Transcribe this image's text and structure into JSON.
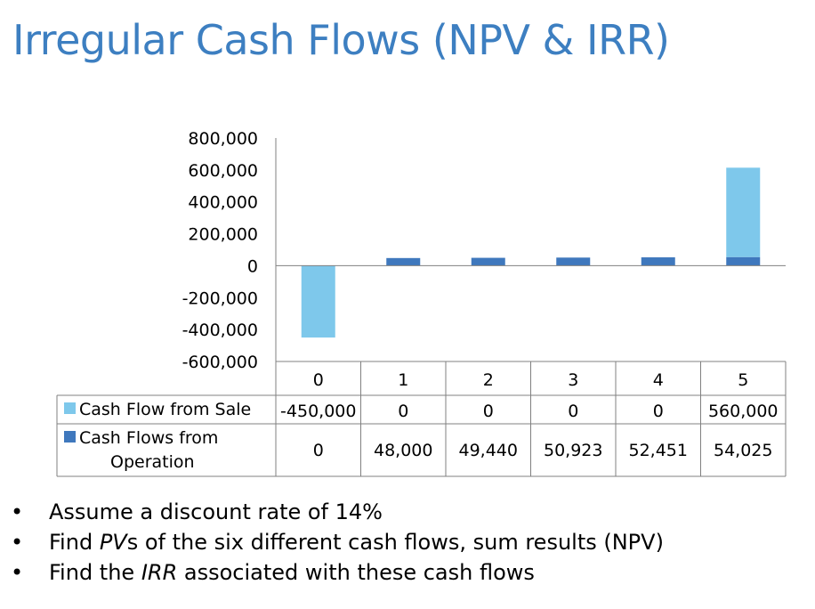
{
  "title": "Irregular Cash Flows (NPV & IRR)",
  "colors": {
    "title": "#3d7fc1",
    "sale": "#7ec8eb",
    "operation": "#3f78bd",
    "axis": "#808080"
  },
  "chart_data": {
    "type": "bar",
    "stacked": true,
    "categories": [
      "0",
      "1",
      "2",
      "3",
      "4",
      "5"
    ],
    "series": [
      {
        "name": "Cash Flow from Sale",
        "values": [
          -450000,
          0,
          0,
          0,
          0,
          560000
        ],
        "labels": [
          "-450,000",
          "0",
          "0",
          "0",
          "0",
          "560,000"
        ],
        "color": "#7ec8eb"
      },
      {
        "name": "Cash Flows from Operation",
        "values": [
          0,
          48000,
          49440,
          50923,
          52451,
          54025
        ],
        "labels": [
          "0",
          "48,000",
          "49,440",
          "50,923",
          "52,451",
          "54,025"
        ],
        "color": "#3f78bd"
      }
    ],
    "ylim": [
      -600000,
      800000
    ],
    "yticks": [
      800000,
      600000,
      400000,
      200000,
      0,
      -200000,
      -400000,
      -600000
    ],
    "ytick_labels": [
      "800,000",
      "600,000",
      "400,000",
      "200,000",
      "0",
      "-200,000",
      "-400,000",
      "-600,000"
    ],
    "data_table": true,
    "grid": false
  },
  "bullets": [
    {
      "parts": [
        {
          "text": "Assume a discount rate of 14%",
          "italic": false
        }
      ]
    },
    {
      "parts": [
        {
          "text": "Find ",
          "italic": false
        },
        {
          "text": "PV",
          "italic": true
        },
        {
          "text": "s of the six different cash flows, sum results (NPV)",
          "italic": false
        }
      ]
    },
    {
      "parts": [
        {
          "text": "Find the ",
          "italic": false
        },
        {
          "text": "IRR",
          "italic": true
        },
        {
          "text": " associated with these cash flows",
          "italic": false
        }
      ]
    }
  ],
  "bullet_symbol": "•"
}
